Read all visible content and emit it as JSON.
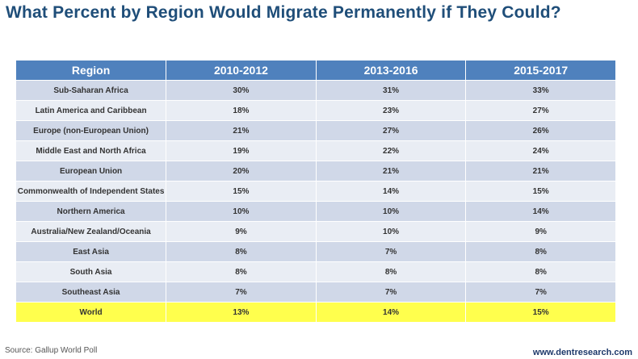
{
  "title": "What Percent by Region Would Migrate Permanently if They Could?",
  "table": {
    "headers": [
      "Region",
      "2010-2012",
      "2013-2016",
      "2015-2017"
    ],
    "rows": [
      [
        "Sub-Saharan Africa",
        "30%",
        "31%",
        "33%"
      ],
      [
        "Latin America  and Caribbean",
        "18%",
        "23%",
        "27%"
      ],
      [
        "Europe (non-European Union)",
        "21%",
        "27%",
        "26%"
      ],
      [
        "Middle East and North Africa",
        "19%",
        "22%",
        "24%"
      ],
      [
        "European Union",
        "20%",
        "21%",
        "21%"
      ],
      [
        "Commonwealth of Independent States",
        "15%",
        "14%",
        "15%"
      ],
      [
        "Northern America",
        "10%",
        "10%",
        "14%"
      ],
      [
        "Australia/New Zealand/Oceania",
        "9%",
        "10%",
        "9%"
      ],
      [
        "East Asia",
        "8%",
        "7%",
        "8%"
      ],
      [
        "South Asia",
        "8%",
        "8%",
        "8%"
      ],
      [
        "Southeast Asia",
        "7%",
        "7%",
        "7%"
      ],
      [
        "World",
        "13%",
        "14%",
        "15%"
      ]
    ]
  },
  "colors": {
    "header": "#4f81bd",
    "row_dark": "#d0d8e8",
    "row_light": "#e9edf4",
    "highlight": "#ffff4d"
  },
  "footer": {
    "source": "Source: Gallup World Poll",
    "site": "www.dentresearch.com"
  }
}
